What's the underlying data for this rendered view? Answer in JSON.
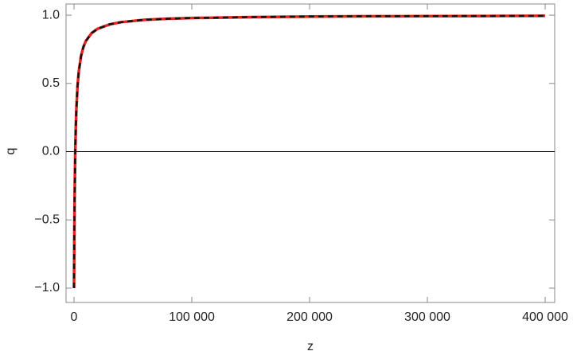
{
  "chart_data": {
    "type": "line",
    "x_label": "z",
    "y_label": "q",
    "x": [
      0,
      200,
      500,
      1000,
      1500,
      2000,
      3000,
      4000,
      6000,
      8000,
      10000,
      15000,
      20000,
      30000,
      40000,
      60000,
      80000,
      100000,
      150000,
      200000,
      250000,
      300000,
      350000,
      400000
    ],
    "series": [
      {
        "color": "#e8231e",
        "dashed": false,
        "values": [
          -1,
          -0.68,
          -0.355,
          -0.024,
          0.176,
          0.311,
          0.481,
          0.584,
          0.702,
          0.768,
          0.81,
          0.869,
          0.9,
          0.932,
          0.949,
          0.966,
          0.974,
          0.979,
          0.986,
          0.99,
          0.992,
          0.993,
          0.994,
          0.995
        ]
      },
      {
        "color": "#111111",
        "dashed": true,
        "values": [
          -1,
          -0.68,
          -0.355,
          -0.024,
          0.176,
          0.311,
          0.481,
          0.584,
          0.702,
          0.768,
          0.81,
          0.869,
          0.9,
          0.932,
          0.949,
          0.966,
          0.974,
          0.979,
          0.986,
          0.99,
          0.992,
          0.993,
          0.994,
          0.995
        ]
      }
    ],
    "xlim": [
      -6757,
      408108
    ],
    "ylim": [
      -1.105,
      1.082
    ],
    "xticks": [
      0,
      {
        "value": 100000,
        "label": "100 000"
      },
      {
        "value": 200000,
        "label": "200 000"
      },
      {
        "value": 300000,
        "label": "300 000"
      },
      {
        "value": 400000,
        "label": "400 000"
      }
    ],
    "yticks": [
      {
        "value": -1,
        "label": "−1.0"
      },
      {
        "value": -0.5,
        "label": "−0.5"
      },
      {
        "value": 0,
        "label": "0.0"
      },
      0.5,
      {
        "value": 1,
        "label": "1.0"
      }
    ]
  }
}
